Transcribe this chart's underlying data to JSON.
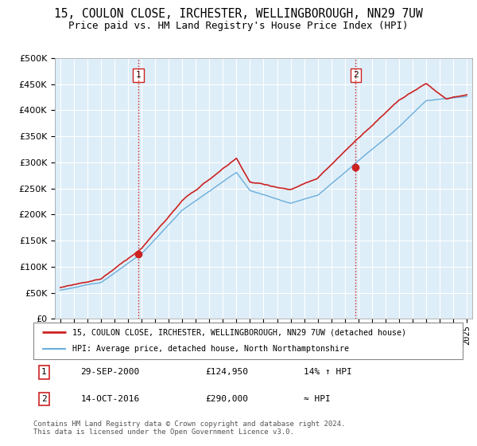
{
  "title_line1": "15, COULON CLOSE, IRCHESTER, WELLINGBOROUGH, NN29 7UW",
  "title_line2": "Price paid vs. HM Land Registry's House Price Index (HPI)",
  "legend_line1": "15, COULON CLOSE, IRCHESTER, WELLINGBOROUGH, NN29 7UW (detached house)",
  "legend_line2": "HPI: Average price, detached house, North Northamptonshire",
  "annotation1_label": "1",
  "annotation1_date": "29-SEP-2000",
  "annotation1_price": "£124,950",
  "annotation1_hpi": "14% ↑ HPI",
  "annotation2_label": "2",
  "annotation2_date": "14-OCT-2016",
  "annotation2_price": "£290,000",
  "annotation2_hpi": "≈ HPI",
  "footer": "Contains HM Land Registry data © Crown copyright and database right 2024.\nThis data is licensed under the Open Government Licence v3.0.",
  "sale1_year": 2000.75,
  "sale1_value": 124950,
  "sale2_year": 2016.79,
  "sale2_value": 290000,
  "hpi_color": "#6aaedc",
  "price_color": "#cc2222",
  "vline_color": "#cc2222",
  "grid_color": "#cccccc",
  "chart_bg": "#deeef8",
  "background_color": "#ffffff",
  "ylim_min": 0,
  "ylim_max": 500000,
  "xlim_min": 1994.6,
  "xlim_max": 2025.4,
  "title_fontsize": 10.5,
  "subtitle_fontsize": 9,
  "axis_fontsize": 8
}
